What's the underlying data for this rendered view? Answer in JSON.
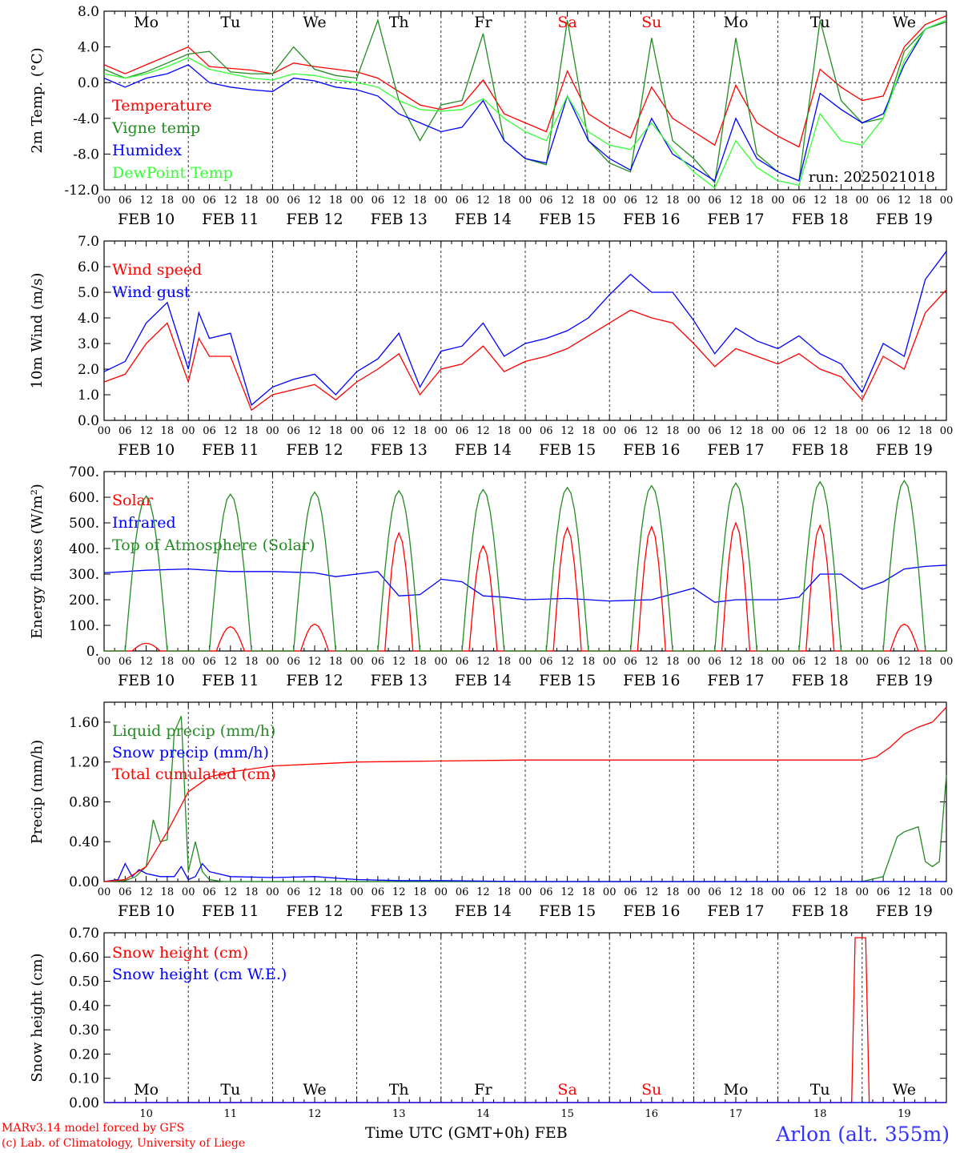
{
  "chart_data": [
    {
      "type": "line",
      "ylabel": "2m Temp. (°C)",
      "ylim": [
        -12,
        8
      ],
      "yticks": [
        "8.0",
        "4.0",
        "0.0",
        "-4.0",
        "-8.0",
        "-12.0"
      ],
      "ytick_values": [
        8,
        4,
        0,
        -4,
        -8,
        -12
      ],
      "day_names": [
        "Mo",
        "Tu",
        "We",
        "Th",
        "Fr",
        "Sa",
        "Su",
        "Mo",
        "Tu",
        "We"
      ],
      "run_label": "run: 2025021018",
      "series": [
        {
          "name": "Temperature",
          "color": "#ff0000",
          "x": [
            0,
            6,
            12,
            18,
            24,
            30,
            36,
            42,
            48,
            54,
            60,
            66,
            72,
            78,
            84,
            90,
            96,
            102,
            108,
            114,
            120,
            126,
            132,
            138,
            144,
            150,
            156,
            162,
            168,
            174,
            180,
            186,
            192,
            198,
            204,
            210,
            216,
            222,
            228,
            234,
            240
          ],
          "values": [
            2.0,
            1.0,
            2.0,
            3.0,
            4.0,
            1.8,
            1.6,
            1.4,
            1.0,
            2.2,
            1.8,
            1.5,
            1.2,
            0.5,
            -1.0,
            -2.5,
            -3.0,
            -2.5,
            0.3,
            -3.5,
            -4.5,
            -5.5,
            1.3,
            -3.5,
            -5.0,
            -6.2,
            -0.5,
            -4.0,
            -5.5,
            -7.0,
            -0.3,
            -4.5,
            -6.0,
            -7.2,
            1.5,
            -0.5,
            -2.0,
            -1.5,
            4.0,
            6.5,
            7.5
          ]
        },
        {
          "name": "Vigne temp",
          "color": "#228b22",
          "x": [
            0,
            6,
            12,
            18,
            24,
            30,
            36,
            42,
            48,
            54,
            60,
            66,
            72,
            78,
            84,
            90,
            96,
            102,
            108,
            114,
            120,
            126,
            132,
            138,
            144,
            150,
            156,
            162,
            168,
            174,
            180,
            186,
            192,
            198,
            204,
            210,
            216,
            222,
            228,
            234,
            240
          ],
          "values": [
            1.5,
            0.5,
            1.2,
            2.2,
            3.2,
            3.5,
            1.2,
            1.0,
            1.0,
            4.0,
            1.5,
            0.8,
            0.5,
            7.0,
            -2.0,
            -6.5,
            -2.5,
            -2.0,
            5.5,
            -6.5,
            -8.5,
            -9.2,
            7.0,
            -6.5,
            -9.0,
            -10.0,
            5.0,
            -6.5,
            -8.5,
            -11.2,
            5.0,
            -8.0,
            -10.0,
            -11.0,
            7.0,
            -2.0,
            -4.5,
            -4.0,
            3.5,
            6.0,
            6.8
          ]
        },
        {
          "name": "Humidex",
          "color": "#0000ff",
          "x": [
            0,
            6,
            12,
            18,
            24,
            30,
            36,
            42,
            48,
            54,
            60,
            66,
            72,
            78,
            84,
            90,
            96,
            102,
            108,
            114,
            120,
            126,
            132,
            138,
            144,
            150,
            156,
            162,
            168,
            174,
            180,
            186,
            192,
            198,
            204,
            210,
            216,
            222,
            228,
            234,
            240
          ],
          "values": [
            0.5,
            -0.5,
            0.5,
            1.0,
            2.0,
            0.0,
            -0.5,
            -0.8,
            -1.0,
            0.5,
            0.2,
            -0.5,
            -0.8,
            -1.5,
            -3.5,
            -4.5,
            -5.5,
            -5.0,
            -2.0,
            -6.5,
            -8.5,
            -9.0,
            -1.5,
            -6.5,
            -8.5,
            -9.8,
            -4.0,
            -8.0,
            -9.5,
            -11.0,
            -4.0,
            -8.5,
            -10.0,
            -11.0,
            -1.2,
            -3.0,
            -4.5,
            -3.5,
            2.0,
            6.0,
            7.0
          ]
        },
        {
          "name": "DewPoint Temp",
          "color": "#33ff33",
          "x": [
            0,
            6,
            12,
            18,
            24,
            30,
            36,
            42,
            48,
            54,
            60,
            66,
            72,
            78,
            84,
            90,
            96,
            102,
            108,
            114,
            120,
            126,
            132,
            138,
            144,
            150,
            156,
            162,
            168,
            174,
            180,
            186,
            192,
            198,
            204,
            210,
            216,
            222,
            228,
            234,
            240
          ],
          "values": [
            1.0,
            0.5,
            1.0,
            1.8,
            2.8,
            1.5,
            1.0,
            0.5,
            0.3,
            1.0,
            0.8,
            0.3,
            0.0,
            -0.5,
            -2.0,
            -3.0,
            -3.2,
            -3.0,
            -1.8,
            -4.0,
            -5.5,
            -6.5,
            -1.5,
            -5.5,
            -7.0,
            -7.5,
            -4.5,
            -7.5,
            -10.0,
            -11.8,
            -6.5,
            -9.5,
            -11.0,
            -11.5,
            -3.5,
            -6.5,
            -7.0,
            -4.0,
            2.5,
            6.0,
            7.0
          ]
        }
      ]
    },
    {
      "type": "line",
      "ylabel": "10m Wind (m/s)",
      "ylim": [
        0,
        7
      ],
      "yticks": [
        "7.0",
        "6.0",
        "5.0",
        "4.0",
        "3.0",
        "2.0",
        "1.0",
        "0.0"
      ],
      "ytick_values": [
        7,
        6,
        5,
        4,
        3,
        2,
        1,
        0
      ],
      "series": [
        {
          "name": "Wind speed",
          "color": "#ff0000",
          "x": [
            0,
            6,
            12,
            18,
            24,
            27,
            30,
            36,
            42,
            48,
            54,
            60,
            66,
            72,
            78,
            84,
            90,
            96,
            102,
            108,
            114,
            120,
            126,
            132,
            138,
            144,
            150,
            156,
            162,
            168,
            174,
            180,
            186,
            192,
            198,
            204,
            210,
            216,
            222,
            228,
            234,
            240
          ],
          "values": [
            1.5,
            1.8,
            3.0,
            3.8,
            1.5,
            3.2,
            2.5,
            2.5,
            0.4,
            1.0,
            1.2,
            1.4,
            0.8,
            1.5,
            2.0,
            2.6,
            1.0,
            2.0,
            2.2,
            2.9,
            1.9,
            2.3,
            2.5,
            2.8,
            3.3,
            3.8,
            4.3,
            4.0,
            3.8,
            3.0,
            2.1,
            2.8,
            2.5,
            2.2,
            2.6,
            2.0,
            1.7,
            0.8,
            2.5,
            2.0,
            4.2,
            5.1
          ]
        },
        {
          "name": "Wind gust",
          "color": "#0000ff",
          "x": [
            0,
            6,
            12,
            18,
            24,
            27,
            30,
            36,
            42,
            48,
            54,
            60,
            66,
            72,
            78,
            84,
            90,
            96,
            102,
            108,
            114,
            120,
            126,
            132,
            138,
            144,
            150,
            156,
            162,
            168,
            174,
            180,
            186,
            192,
            198,
            204,
            210,
            216,
            222,
            228,
            234,
            240
          ],
          "values": [
            1.9,
            2.3,
            3.8,
            4.6,
            2.0,
            4.2,
            3.2,
            3.4,
            0.6,
            1.3,
            1.6,
            1.8,
            1.0,
            1.9,
            2.4,
            3.4,
            1.3,
            2.7,
            2.9,
            3.8,
            2.5,
            3.0,
            3.2,
            3.5,
            4.0,
            4.9,
            5.7,
            5.0,
            5.0,
            3.9,
            2.6,
            3.6,
            3.1,
            2.8,
            3.3,
            2.6,
            2.2,
            1.1,
            3.0,
            2.5,
            5.5,
            6.6
          ]
        }
      ]
    },
    {
      "type": "line",
      "ylabel": "Energy fluxes (W/m²)",
      "ylim": [
        0,
        700
      ],
      "yticks": [
        "700.",
        "600.",
        "500.",
        "400.",
        "300.",
        "200.",
        "100.",
        "0."
      ],
      "ytick_values": [
        700,
        600,
        500,
        400,
        300,
        200,
        100,
        0
      ],
      "series": [
        {
          "name": "Solar",
          "color": "#ff0000",
          "peaks": [
            30,
            95,
            105,
            460,
            410,
            480,
            485,
            500,
            490,
            105
          ]
        },
        {
          "name": "Infrared",
          "color": "#0000ff",
          "x": [
            0,
            12,
            24,
            36,
            48,
            60,
            66,
            72,
            78,
            84,
            90,
            96,
            102,
            108,
            114,
            120,
            132,
            144,
            156,
            168,
            174,
            180,
            186,
            192,
            198,
            204,
            210,
            216,
            222,
            228,
            234,
            240
          ],
          "values": [
            305,
            315,
            320,
            310,
            310,
            305,
            290,
            300,
            310,
            215,
            220,
            280,
            270,
            215,
            210,
            200,
            205,
            195,
            200,
            245,
            190,
            200,
            200,
            200,
            210,
            300,
            300,
            240,
            270,
            320,
            330,
            335
          ]
        },
        {
          "name": "Top of Atmosphere (Solar)",
          "color": "#228b22",
          "peaks": [
            605,
            612,
            620,
            625,
            630,
            638,
            645,
            655,
            660,
            665
          ]
        }
      ]
    },
    {
      "type": "line",
      "ylabel": "Precip (mm/h)",
      "ylim": [
        0,
        1.8
      ],
      "yticks": [
        "1.60",
        "1.20",
        "0.80",
        "0.40",
        "0.00"
      ],
      "ytick_values": [
        1.6,
        1.2,
        0.8,
        0.4,
        0.0
      ],
      "series": [
        {
          "name": "Liquid precip (mm/h)",
          "color": "#228b22",
          "x": [
            0,
            6,
            9,
            12,
            14,
            16,
            18,
            20,
            22,
            24,
            26,
            28,
            30,
            34,
            40,
            48,
            60,
            72,
            96,
            120,
            168,
            216,
            222,
            226,
            228,
            232,
            234,
            236,
            238,
            240
          ],
          "values": [
            0,
            0.01,
            0.05,
            0.15,
            0.62,
            0.4,
            0.42,
            1.5,
            1.66,
            0.1,
            0.4,
            0.1,
            0.02,
            0,
            0,
            0,
            0,
            0,
            0,
            0,
            0,
            0,
            0.05,
            0.45,
            0.5,
            0.55,
            0.2,
            0.15,
            0.2,
            1.07
          ]
        },
        {
          "name": "Snow precip (mm/h)",
          "color": "#0000ff",
          "x": [
            0,
            4,
            6,
            8,
            10,
            12,
            16,
            20,
            22,
            24,
            26,
            28,
            30,
            36,
            48,
            60,
            72,
            84,
            96,
            120,
            168,
            216,
            240
          ],
          "values": [
            0,
            0.02,
            0.18,
            0.05,
            0.12,
            0.08,
            0.05,
            0.05,
            0.15,
            0.02,
            0.05,
            0.18,
            0.1,
            0.05,
            0.04,
            0.05,
            0.02,
            0.01,
            0.01,
            0,
            0,
            0,
            0
          ]
        },
        {
          "name": "Total cumulated (cm)",
          "color": "#ff0000",
          "x": [
            0,
            6,
            12,
            18,
            24,
            30,
            36,
            48,
            60,
            72,
            96,
            120,
            168,
            210,
            216,
            220,
            224,
            228,
            232,
            236,
            240
          ],
          "values": [
            0,
            0.02,
            0.15,
            0.5,
            0.9,
            1.05,
            1.1,
            1.16,
            1.18,
            1.2,
            1.21,
            1.22,
            1.22,
            1.22,
            1.22,
            1.25,
            1.35,
            1.48,
            1.55,
            1.6,
            1.75
          ]
        }
      ]
    },
    {
      "type": "line",
      "ylabel": "Snow height (cm)",
      "ylim": [
        0,
        0.7
      ],
      "yticks": [
        "0.70",
        "0.60",
        "0.50",
        "0.40",
        "0.30",
        "0.20",
        "0.10",
        "0.00"
      ],
      "ytick_values": [
        0.7,
        0.6,
        0.5,
        0.4,
        0.3,
        0.2,
        0.1,
        0.0
      ],
      "day_numbers": [
        "10",
        "11",
        "12",
        "13",
        "14",
        "15",
        "16",
        "17",
        "18",
        "19"
      ],
      "series": [
        {
          "name": "Snow height (cm)",
          "color": "#ff0000",
          "x": [
            0,
            213,
            214,
            217,
            218,
            240
          ],
          "values": [
            0,
            0,
            0.68,
            0.68,
            0,
            0
          ]
        },
        {
          "name": "Snow height (cm W.E.)",
          "color": "#0000ff",
          "x": [
            0,
            240
          ],
          "values": [
            0,
            0
          ]
        }
      ]
    }
  ],
  "x_axis": {
    "hour_ticks": [
      "00",
      "06",
      "12",
      "18"
    ],
    "last_tick": "00",
    "day_labels": [
      "FEB 10",
      "FEB 11",
      "FEB 12",
      "FEB 13",
      "FEB 14",
      "FEB 15",
      "FEB 16",
      "FEB 17",
      "FEB 18",
      "FEB 19"
    ],
    "weekend_color": "#ff0000",
    "weekend_days": [
      5,
      6
    ]
  },
  "footer": {
    "credit_line_1": "MARv3.14 model forced by GFS",
    "credit_line_2": "(c) Lab. of Climatology, University of Liege",
    "x_title": "Time UTC (GMT+0h) FEB",
    "station": "Arlon (alt. 355m)"
  }
}
